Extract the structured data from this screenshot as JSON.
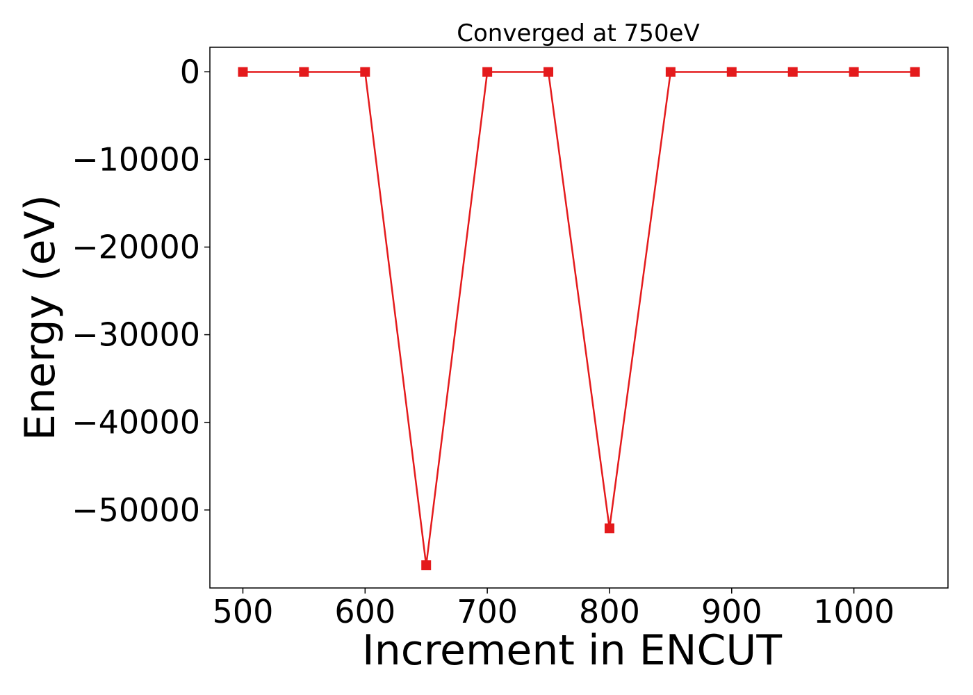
{
  "chart_data": {
    "type": "line",
    "title": "Converged at 750eV",
    "xlabel": "Increment in ENCUT",
    "ylabel": "Energy (eV)",
    "x": [
      500,
      550,
      600,
      650,
      700,
      750,
      800,
      850,
      900,
      950,
      1000,
      1050
    ],
    "series": [
      {
        "values": [
          -20,
          -20,
          -20,
          -56300,
          -20,
          -20,
          -52100,
          -20,
          -20,
          -20,
          -20,
          -20
        ],
        "color": "#e41a1c",
        "marker": "square"
      }
    ],
    "xticks": [
      500,
      600,
      700,
      800,
      900,
      1000
    ],
    "xtick_labels": [
      "500",
      "600",
      "700",
      "800",
      "900",
      "1000"
    ],
    "yticks": [
      0,
      -10000,
      -20000,
      -30000,
      -40000,
      -50000
    ],
    "ytick_labels": [
      "0",
      "−10000",
      "−20000",
      "−30000",
      "−40000",
      "−50000"
    ],
    "xlim": [
      473,
      1077
    ],
    "ylim": [
      -58900,
      2800
    ],
    "grid": false
  }
}
